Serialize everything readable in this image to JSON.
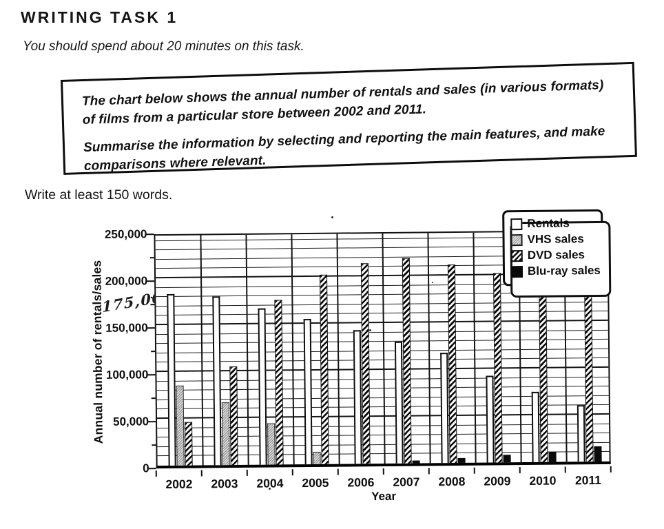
{
  "doc": {
    "heading": "WRITING TASK 1",
    "time_note": "You should spend about 20 minutes on this task.",
    "task_box": {
      "line1": "The chart below shows the annual number of rentals and sales (in various formats) of films from a particular store between 2002 and 2011.",
      "line2": "Summarise the information by selecting and reporting the main features, and make comparisons where relevant."
    },
    "length_note": "Write at least 150 words.",
    "handwritten_note": "175,000"
  },
  "chart_data": {
    "type": "bar",
    "title": "",
    "xlabel": "Year",
    "ylabel": "Annual number of rentals/sales",
    "ylim": [
      0,
      250000
    ],
    "ytick_step": 50000,
    "ytick_labels": [
      "0",
      "50,000",
      "100,000",
      "150,000",
      "200,000",
      "250,000"
    ],
    "gridline_step": 10000,
    "grid": true,
    "legend_position": "top-right",
    "legend_entries": [
      "Rentals",
      "VHS sales",
      "DVD sales",
      "Blu-ray sales"
    ],
    "categories": [
      "2002",
      "2003",
      "2004",
      "2005",
      "2006",
      "2007",
      "2008",
      "2009",
      "2010",
      "2011"
    ],
    "series": [
      {
        "name": "Rentals",
        "pattern": "plain-white",
        "values": [
          183000,
          180000,
          167000,
          155000,
          143000,
          130000,
          118000,
          93000,
          75000,
          60000
        ]
      },
      {
        "name": "VHS sales",
        "pattern": "light-stipple",
        "values": [
          85000,
          67000,
          44000,
          13000,
          null,
          null,
          null,
          null,
          null,
          null
        ]
      },
      {
        "name": "DVD sales",
        "pattern": "diagonal-hatch",
        "values": [
          46000,
          105000,
          176000,
          202000,
          214000,
          219000,
          212000,
          202000,
          192000,
          186000
        ]
      },
      {
        "name": "Blu-ray sales",
        "pattern": "solid-black",
        "values": [
          null,
          null,
          null,
          null,
          null,
          3000,
          5000,
          8000,
          11000,
          16000
        ]
      }
    ]
  },
  "colors": {
    "ink": "#111111",
    "paper": "#ffffff"
  }
}
